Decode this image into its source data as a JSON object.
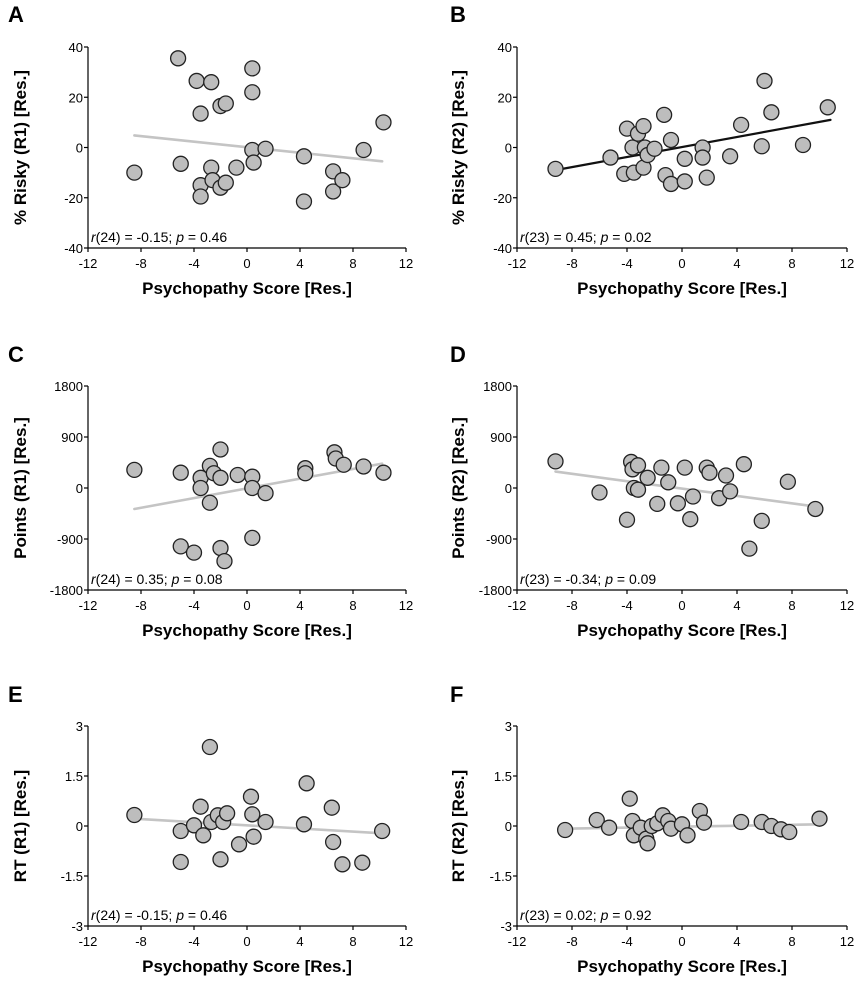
{
  "figure": {
    "line_colors": {
      "grey": "#c4c4c4",
      "black": "#111111"
    }
  },
  "chart_data": [
    {
      "panel": "A",
      "type": "scatter",
      "xlabel": "Psychopathy Score [Res.]",
      "ylabel": "% Risky (R1) [Res.]",
      "xlim": [
        -12,
        12
      ],
      "ylim": [
        -40,
        40
      ],
      "xticks": [
        "-12",
        "-8",
        "-4",
        "0",
        "4",
        "8",
        "12"
      ],
      "yticks": [
        "40",
        "20",
        "0",
        "-20",
        "-40"
      ],
      "ytick_values": [
        40,
        20,
        0,
        -20,
        -40
      ],
      "stat": {
        "prefix": "r",
        "df": "(24) = -0.15; ",
        "p_label": "p",
        "p_text": " = 0.46"
      },
      "trend": {
        "x": [
          -8.5,
          10.2
        ],
        "y": [
          4.8,
          -5.5
        ],
        "color": "grey"
      },
      "points": [
        {
          "x": -8.5,
          "y": -10
        },
        {
          "x": -5.2,
          "y": 35.5
        },
        {
          "x": -5.0,
          "y": -6.5
        },
        {
          "x": -3.8,
          "y": 26.5
        },
        {
          "x": -3.5,
          "y": 13.5
        },
        {
          "x": -3.5,
          "y": -15
        },
        {
          "x": -3.5,
          "y": -19.5
        },
        {
          "x": -2.7,
          "y": 26
        },
        {
          "x": -2.7,
          "y": -8
        },
        {
          "x": -2.6,
          "y": -13
        },
        {
          "x": -2.0,
          "y": 16.5
        },
        {
          "x": -2.0,
          "y": -16
        },
        {
          "x": -1.6,
          "y": 17.5
        },
        {
          "x": -1.6,
          "y": -14
        },
        {
          "x": -0.8,
          "y": -8
        },
        {
          "x": 0.4,
          "y": 31.5
        },
        {
          "x": 0.4,
          "y": 22
        },
        {
          "x": 0.4,
          "y": -1
        },
        {
          "x": 0.5,
          "y": -6
        },
        {
          "x": 1.4,
          "y": -0.5
        },
        {
          "x": 4.3,
          "y": -3.5
        },
        {
          "x": 4.3,
          "y": -21.5
        },
        {
          "x": 6.5,
          "y": -9.5
        },
        {
          "x": 6.5,
          "y": -17.5
        },
        {
          "x": 7.2,
          "y": -13
        },
        {
          "x": 8.8,
          "y": -1
        },
        {
          "x": 10.3,
          "y": 10
        }
      ]
    },
    {
      "panel": "B",
      "type": "scatter",
      "xlabel": "Psychopathy Score [Res.]",
      "ylabel": "% Risky (R2) [Res.]",
      "xlim": [
        -12,
        12
      ],
      "ylim": [
        -40,
        40
      ],
      "xticks": [
        "-12",
        "-8",
        "-4",
        "0",
        "4",
        "8",
        "12"
      ],
      "yticks": [
        "40",
        "20",
        "0",
        "-20",
        "-40"
      ],
      "ytick_values": [
        40,
        20,
        0,
        -20,
        -40
      ],
      "stat": {
        "prefix": "r",
        "df": "(23) = 0.45; ",
        "p_label": "p",
        "p_text": " = 0.02"
      },
      "trend": {
        "x": [
          -9.2,
          10.8
        ],
        "y": [
          -9,
          11
        ],
        "color": "black"
      },
      "points": [
        {
          "x": -9.2,
          "y": -8.5
        },
        {
          "x": -5.2,
          "y": -4
        },
        {
          "x": -4.2,
          "y": -10.5
        },
        {
          "x": -4.0,
          "y": 7.5
        },
        {
          "x": -3.6,
          "y": 0
        },
        {
          "x": -3.5,
          "y": -10
        },
        {
          "x": -3.2,
          "y": 5.5
        },
        {
          "x": -2.8,
          "y": 8.5
        },
        {
          "x": -2.8,
          "y": -8
        },
        {
          "x": -2.7,
          "y": 0
        },
        {
          "x": -2.5,
          "y": -3
        },
        {
          "x": -2.0,
          "y": -0.5
        },
        {
          "x": -1.3,
          "y": 13
        },
        {
          "x": -1.2,
          "y": -11
        },
        {
          "x": -0.8,
          "y": 3
        },
        {
          "x": -0.8,
          "y": -14.5
        },
        {
          "x": 0.2,
          "y": -4.5
        },
        {
          "x": 0.2,
          "y": -13.5
        },
        {
          "x": 1.5,
          "y": 0
        },
        {
          "x": 1.5,
          "y": -4
        },
        {
          "x": 1.8,
          "y": -12
        },
        {
          "x": 3.5,
          "y": -3.5
        },
        {
          "x": 4.3,
          "y": 9
        },
        {
          "x": 5.8,
          "y": 0.5
        },
        {
          "x": 6.0,
          "y": 26.5
        },
        {
          "x": 6.5,
          "y": 14
        },
        {
          "x": 8.8,
          "y": 1
        },
        {
          "x": 10.6,
          "y": 16
        }
      ]
    },
    {
      "panel": "C",
      "type": "scatter",
      "xlabel": "Psychopathy Score [Res.]",
      "ylabel": "Points (R1) [Res.]",
      "xlim": [
        -12,
        12
      ],
      "ylim": [
        -1800,
        1800
      ],
      "xticks": [
        "-12",
        "-8",
        "-4",
        "0",
        "4",
        "8",
        "12"
      ],
      "yticks": [
        "1800",
        "900",
        "0",
        "-900",
        "-1800"
      ],
      "ytick_values": [
        1800,
        900,
        0,
        -900,
        -1800
      ],
      "stat": {
        "prefix": "r",
        "df": "(24) = 0.35; ",
        "p_label": "p",
        "p_text": " = 0.08"
      },
      "trend": {
        "x": [
          -8.5,
          10.2
        ],
        "y": [
          -370,
          430
        ],
        "color": "grey"
      },
      "points": [
        {
          "x": -8.5,
          "y": 320
        },
        {
          "x": -5.0,
          "y": 270
        },
        {
          "x": -5.0,
          "y": -1030
        },
        {
          "x": -4.0,
          "y": -1140
        },
        {
          "x": -3.5,
          "y": 180
        },
        {
          "x": -3.5,
          "y": 0
        },
        {
          "x": -2.8,
          "y": 390
        },
        {
          "x": -2.8,
          "y": -260
        },
        {
          "x": -2.5,
          "y": 260
        },
        {
          "x": -2.0,
          "y": 680
        },
        {
          "x": -2.0,
          "y": 180
        },
        {
          "x": -2.0,
          "y": -1060
        },
        {
          "x": -1.7,
          "y": -1290
        },
        {
          "x": -0.7,
          "y": 230
        },
        {
          "x": 0.4,
          "y": 200
        },
        {
          "x": 0.4,
          "y": 0
        },
        {
          "x": 0.4,
          "y": -880
        },
        {
          "x": 1.4,
          "y": -90
        },
        {
          "x": 4.4,
          "y": 350
        },
        {
          "x": 4.4,
          "y": 260
        },
        {
          "x": 6.6,
          "y": 630
        },
        {
          "x": 6.7,
          "y": 520
        },
        {
          "x": 7.3,
          "y": 410
        },
        {
          "x": 8.8,
          "y": 380
        },
        {
          "x": 10.3,
          "y": 270
        }
      ]
    },
    {
      "panel": "D",
      "type": "scatter",
      "xlabel": "Psychopathy Score [Res.]",
      "ylabel": "Points (R2) [Res.]",
      "xlim": [
        -12,
        12
      ],
      "ylim": [
        -1800,
        1800
      ],
      "xticks": [
        "-12",
        "-8",
        "-4",
        "0",
        "4",
        "8",
        "12"
      ],
      "yticks": [
        "1800",
        "900",
        "0",
        "-900",
        "-1800"
      ],
      "ytick_values": [
        1800,
        900,
        0,
        -900,
        -1800
      ],
      "stat": {
        "prefix": "r",
        "df": "(23) = -0.34; ",
        "p_label": "p",
        "p_text": " = 0.09"
      },
      "trend": {
        "x": [
          -9.2,
          9.8
        ],
        "y": [
          290,
          -330
        ],
        "color": "grey"
      },
      "points": [
        {
          "x": -9.2,
          "y": 470
        },
        {
          "x": -6.0,
          "y": -80
        },
        {
          "x": -4.0,
          "y": -560
        },
        {
          "x": -3.7,
          "y": 460
        },
        {
          "x": -3.6,
          "y": 330
        },
        {
          "x": -3.5,
          "y": 0
        },
        {
          "x": -3.2,
          "y": 400
        },
        {
          "x": -3.2,
          "y": -30
        },
        {
          "x": -2.5,
          "y": 180
        },
        {
          "x": -1.8,
          "y": -280
        },
        {
          "x": -1.5,
          "y": 360
        },
        {
          "x": -1.0,
          "y": 100
        },
        {
          "x": -0.3,
          "y": -270
        },
        {
          "x": 0.2,
          "y": 360
        },
        {
          "x": 0.6,
          "y": -550
        },
        {
          "x": 0.8,
          "y": -150
        },
        {
          "x": 1.8,
          "y": 360
        },
        {
          "x": 2.0,
          "y": 270
        },
        {
          "x": 2.7,
          "y": -180
        },
        {
          "x": 3.2,
          "y": 220
        },
        {
          "x": 3.5,
          "y": -60
        },
        {
          "x": 4.5,
          "y": 420
        },
        {
          "x": 4.9,
          "y": -1070
        },
        {
          "x": 5.8,
          "y": -580
        },
        {
          "x": 7.7,
          "y": 110
        },
        {
          "x": 9.7,
          "y": -370
        }
      ]
    },
    {
      "panel": "E",
      "type": "scatter",
      "xlabel": "Psychopathy Score [Res.]",
      "ylabel": "RT (R1) [Res.]",
      "xlim": [
        -12,
        12
      ],
      "ylim": [
        -3,
        3
      ],
      "xticks": [
        "-12",
        "-8",
        "-4",
        "0",
        "4",
        "8",
        "12"
      ],
      "yticks": [
        "3",
        "1.5",
        "0",
        "-1.5",
        "-3"
      ],
      "ytick_values": [
        3,
        1.5,
        0,
        -1.5,
        -3
      ],
      "stat": {
        "prefix": "r",
        "df": "(24) = -0.15; ",
        "p_label": "p",
        "p_text": " = 0.46"
      },
      "trend": {
        "x": [
          -8.5,
          10.2
        ],
        "y": [
          0.22,
          -0.22
        ],
        "color": "grey"
      },
      "points": [
        {
          "x": -8.5,
          "y": 0.33
        },
        {
          "x": -5.0,
          "y": -0.15
        },
        {
          "x": -5.0,
          "y": -1.08
        },
        {
          "x": -4.0,
          "y": 0.02
        },
        {
          "x": -3.5,
          "y": 0.58
        },
        {
          "x": -3.3,
          "y": -0.28
        },
        {
          "x": -2.8,
          "y": 2.37
        },
        {
          "x": -2.7,
          "y": 0.12
        },
        {
          "x": -2.2,
          "y": 0.32
        },
        {
          "x": -2.0,
          "y": -1.0
        },
        {
          "x": -1.8,
          "y": 0.12
        },
        {
          "x": -1.5,
          "y": 0.38
        },
        {
          "x": -0.6,
          "y": -0.55
        },
        {
          "x": 0.3,
          "y": 0.88
        },
        {
          "x": 0.4,
          "y": 0.35
        },
        {
          "x": 0.5,
          "y": -0.32
        },
        {
          "x": 1.4,
          "y": 0.12
        },
        {
          "x": 4.3,
          "y": 0.05
        },
        {
          "x": 4.5,
          "y": 1.28
        },
        {
          "x": 6.4,
          "y": 0.55
        },
        {
          "x": 6.5,
          "y": -0.48
        },
        {
          "x": 7.2,
          "y": -1.15
        },
        {
          "x": 8.7,
          "y": -1.1
        },
        {
          "x": 10.2,
          "y": -0.15
        }
      ]
    },
    {
      "panel": "F",
      "type": "scatter",
      "xlabel": "Psychopathy Score [Res.]",
      "ylabel": "RT (R2) [Res.]",
      "xlim": [
        -12,
        12
      ],
      "ylim": [
        -3,
        3
      ],
      "xticks": [
        "-12",
        "-8",
        "-4",
        "0",
        "4",
        "8",
        "12"
      ],
      "yticks": [
        "3",
        "1.5",
        "0",
        "-1.5",
        "-3"
      ],
      "ytick_values": [
        3,
        1.5,
        0,
        -1.5,
        -3
      ],
      "stat": {
        "prefix": "r",
        "df": "(23) = 0.02; ",
        "p_label": "p",
        "p_text": " = 0.92"
      },
      "trend": {
        "x": [
          -8.5,
          10.0
        ],
        "y": [
          -0.08,
          0.05
        ],
        "color": "grey"
      },
      "points": [
        {
          "x": -8.5,
          "y": -0.12
        },
        {
          "x": -6.2,
          "y": 0.18
        },
        {
          "x": -5.3,
          "y": -0.05
        },
        {
          "x": -3.8,
          "y": 0.82
        },
        {
          "x": -3.6,
          "y": 0.15
        },
        {
          "x": -3.5,
          "y": -0.28
        },
        {
          "x": -3.0,
          "y": -0.05
        },
        {
          "x": -2.6,
          "y": -0.38
        },
        {
          "x": -2.5,
          "y": -0.52
        },
        {
          "x": -2.2,
          "y": 0.0
        },
        {
          "x": -1.8,
          "y": 0.08
        },
        {
          "x": -1.4,
          "y": 0.32
        },
        {
          "x": -1.0,
          "y": 0.15
        },
        {
          "x": -0.8,
          "y": -0.08
        },
        {
          "x": 0.0,
          "y": 0.05
        },
        {
          "x": 0.4,
          "y": -0.28
        },
        {
          "x": 1.3,
          "y": 0.45
        },
        {
          "x": 1.6,
          "y": 0.1
        },
        {
          "x": 4.3,
          "y": 0.12
        },
        {
          "x": 5.8,
          "y": 0.12
        },
        {
          "x": 6.5,
          "y": 0.0
        },
        {
          "x": 7.2,
          "y": -0.1
        },
        {
          "x": 7.8,
          "y": -0.18
        },
        {
          "x": 10.0,
          "y": 0.22
        }
      ]
    }
  ]
}
